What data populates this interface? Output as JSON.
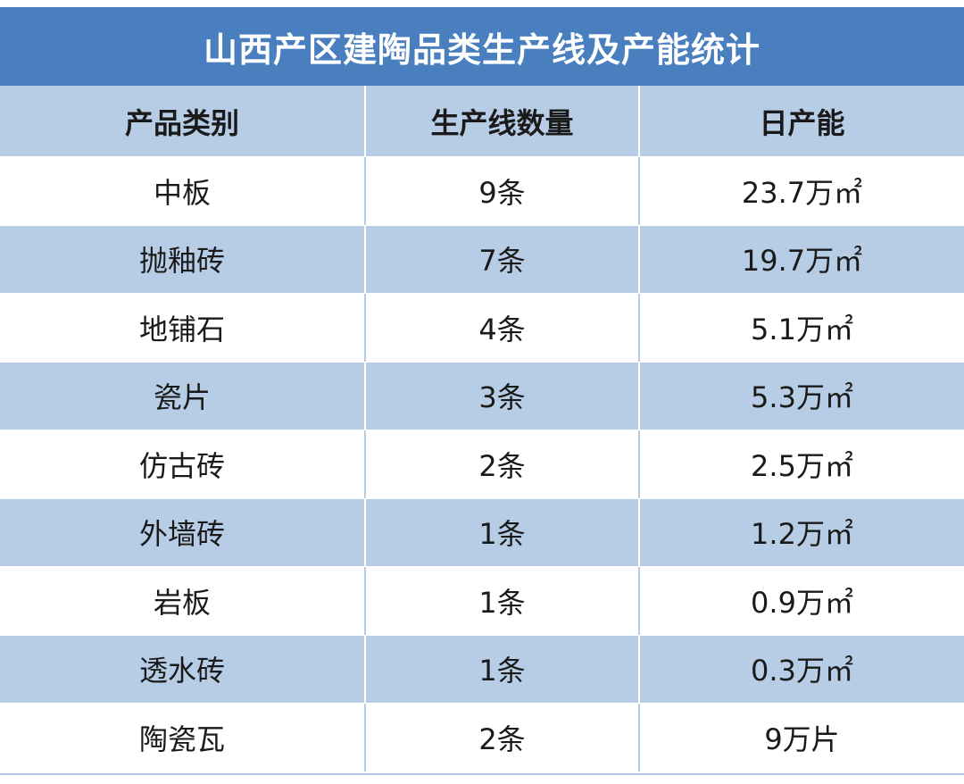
{
  "title": "山西产区建陶品类生产线及产能统计",
  "headers": {
    "category": "产品类别",
    "lines": "生产线数量",
    "capacity": "日产能"
  },
  "rows": [
    {
      "category": "中板",
      "lines": "9条",
      "capacity": "23.7万㎡"
    },
    {
      "category": "抛釉砖",
      "lines": "7条",
      "capacity": "19.7万㎡"
    },
    {
      "category": "地铺石",
      "lines": "4条",
      "capacity": "5.1万㎡"
    },
    {
      "category": "瓷片",
      "lines": "3条",
      "capacity": "5.3万㎡"
    },
    {
      "category": "仿古砖",
      "lines": "2条",
      "capacity": "2.5万㎡"
    },
    {
      "category": "外墙砖",
      "lines": "1条",
      "capacity": "1.2万㎡"
    },
    {
      "category": "岩板",
      "lines": "1条",
      "capacity": "0.9万㎡"
    },
    {
      "category": "透水砖",
      "lines": "1条",
      "capacity": "0.3万㎡"
    },
    {
      "category": "陶瓷瓦",
      "lines": "2条",
      "capacity": "9万片"
    }
  ],
  "colors": {
    "title_bg": "#4a7fbf",
    "stripe": "#b7cde6"
  }
}
